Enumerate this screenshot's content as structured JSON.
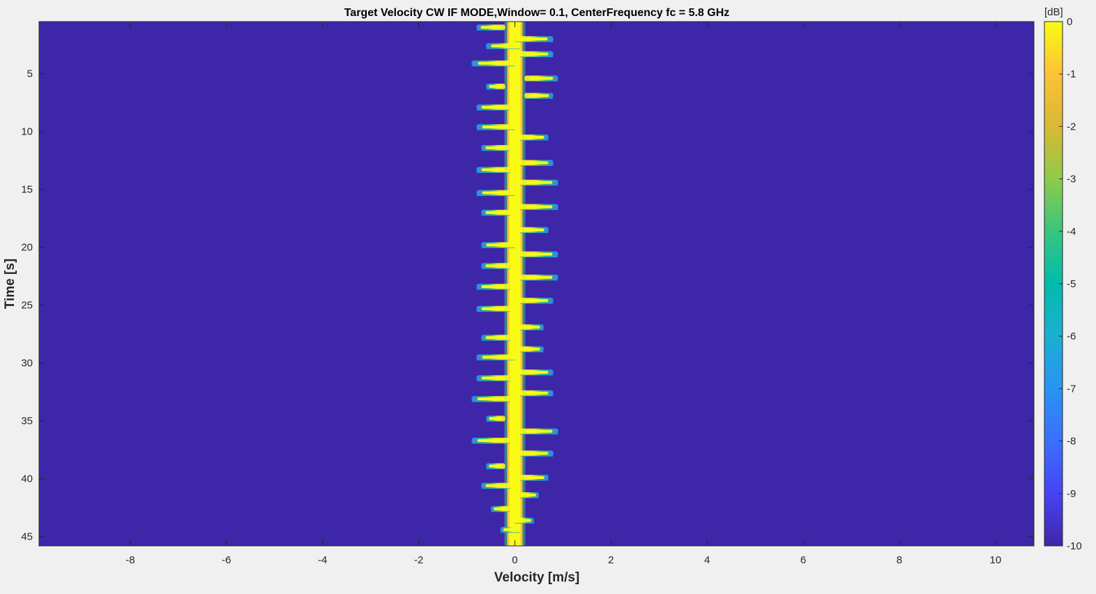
{
  "chart_data": {
    "type": "heatmap",
    "title": "Target Velocity CW IF MODE,Window= 0.1, CenterFrequency fc = 5.8 GHz",
    "xlabel": "Velocity [m/s]",
    "ylabel": "Time [s]",
    "xlim": [
      -9.9,
      10.8
    ],
    "ylim": [
      0.5,
      45.8
    ],
    "y_reversed": true,
    "xticks": [
      -8,
      -6,
      -4,
      -2,
      0,
      2,
      4,
      6,
      8,
      10
    ],
    "yticks": [
      5,
      10,
      15,
      20,
      25,
      30,
      35,
      40,
      45
    ],
    "colorbar": {
      "unit": "[dB]",
      "range": [
        -10,
        0
      ],
      "ticks": [
        0,
        -1,
        -2,
        -3,
        -4,
        -5,
        -6,
        -7,
        -8,
        -9,
        -10
      ],
      "colormap": "parula"
    },
    "background_db": -10,
    "core": {
      "center_velocity": 0.0,
      "half_width": 0.13,
      "level_db": 0
    },
    "streaks": [
      {
        "t": 1.0,
        "v0": -0.8,
        "v1": -0.2
      },
      {
        "t": 2.0,
        "v0": 0.0,
        "v1": 0.8
      },
      {
        "t": 2.6,
        "v0": -0.6,
        "v1": 0.1
      },
      {
        "t": 3.3,
        "v0": 0.1,
        "v1": 0.8
      },
      {
        "t": 4.1,
        "v0": -0.9,
        "v1": 0.0
      },
      {
        "t": 5.4,
        "v0": 0.2,
        "v1": 0.9
      },
      {
        "t": 6.1,
        "v0": -0.6,
        "v1": -0.2
      },
      {
        "t": 6.9,
        "v0": 0.2,
        "v1": 0.8
      },
      {
        "t": 7.9,
        "v0": -0.8,
        "v1": -0.1
      },
      {
        "t": 9.6,
        "v0": -0.8,
        "v1": 0.0
      },
      {
        "t": 10.5,
        "v0": 0.1,
        "v1": 0.7
      },
      {
        "t": 11.4,
        "v0": -0.7,
        "v1": -0.1
      },
      {
        "t": 12.7,
        "v0": 0.1,
        "v1": 0.8
      },
      {
        "t": 13.3,
        "v0": -0.8,
        "v1": -0.1
      },
      {
        "t": 14.4,
        "v0": 0.1,
        "v1": 0.9
      },
      {
        "t": 15.3,
        "v0": -0.8,
        "v1": 0.0
      },
      {
        "t": 16.5,
        "v0": 0.1,
        "v1": 0.9
      },
      {
        "t": 17.0,
        "v0": -0.7,
        "v1": -0.1
      },
      {
        "t": 18.5,
        "v0": 0.1,
        "v1": 0.7
      },
      {
        "t": 19.8,
        "v0": -0.7,
        "v1": 0.0
      },
      {
        "t": 20.6,
        "v0": 0.1,
        "v1": 0.9
      },
      {
        "t": 21.6,
        "v0": -0.7,
        "v1": -0.1
      },
      {
        "t": 22.6,
        "v0": 0.1,
        "v1": 0.9
      },
      {
        "t": 23.4,
        "v0": -0.8,
        "v1": -0.1
      },
      {
        "t": 24.6,
        "v0": 0.1,
        "v1": 0.8
      },
      {
        "t": 25.3,
        "v0": -0.8,
        "v1": -0.1
      },
      {
        "t": 26.9,
        "v0": 0.1,
        "v1": 0.6
      },
      {
        "t": 27.8,
        "v0": -0.7,
        "v1": -0.1
      },
      {
        "t": 28.8,
        "v0": 0.1,
        "v1": 0.6
      },
      {
        "t": 29.5,
        "v0": -0.8,
        "v1": 0.0
      },
      {
        "t": 30.8,
        "v0": 0.1,
        "v1": 0.8
      },
      {
        "t": 31.3,
        "v0": -0.8,
        "v1": -0.1
      },
      {
        "t": 32.6,
        "v0": 0.1,
        "v1": 0.8
      },
      {
        "t": 33.1,
        "v0": -0.9,
        "v1": -0.1
      },
      {
        "t": 34.8,
        "v0": -0.6,
        "v1": -0.2
      },
      {
        "t": 35.9,
        "v0": 0.1,
        "v1": 0.9
      },
      {
        "t": 36.7,
        "v0": -0.9,
        "v1": -0.1
      },
      {
        "t": 37.8,
        "v0": 0.1,
        "v1": 0.8
      },
      {
        "t": 38.9,
        "v0": -0.6,
        "v1": -0.2
      },
      {
        "t": 39.9,
        "v0": 0.1,
        "v1": 0.7
      },
      {
        "t": 40.6,
        "v0": -0.7,
        "v1": -0.1
      },
      {
        "t": 41.4,
        "v0": 0.1,
        "v1": 0.5
      },
      {
        "t": 42.6,
        "v0": -0.5,
        "v1": -0.1
      },
      {
        "t": 43.6,
        "v0": 0.0,
        "v1": 0.4
      },
      {
        "t": 44.4,
        "v0": -0.3,
        "v1": 0.1
      }
    ]
  }
}
